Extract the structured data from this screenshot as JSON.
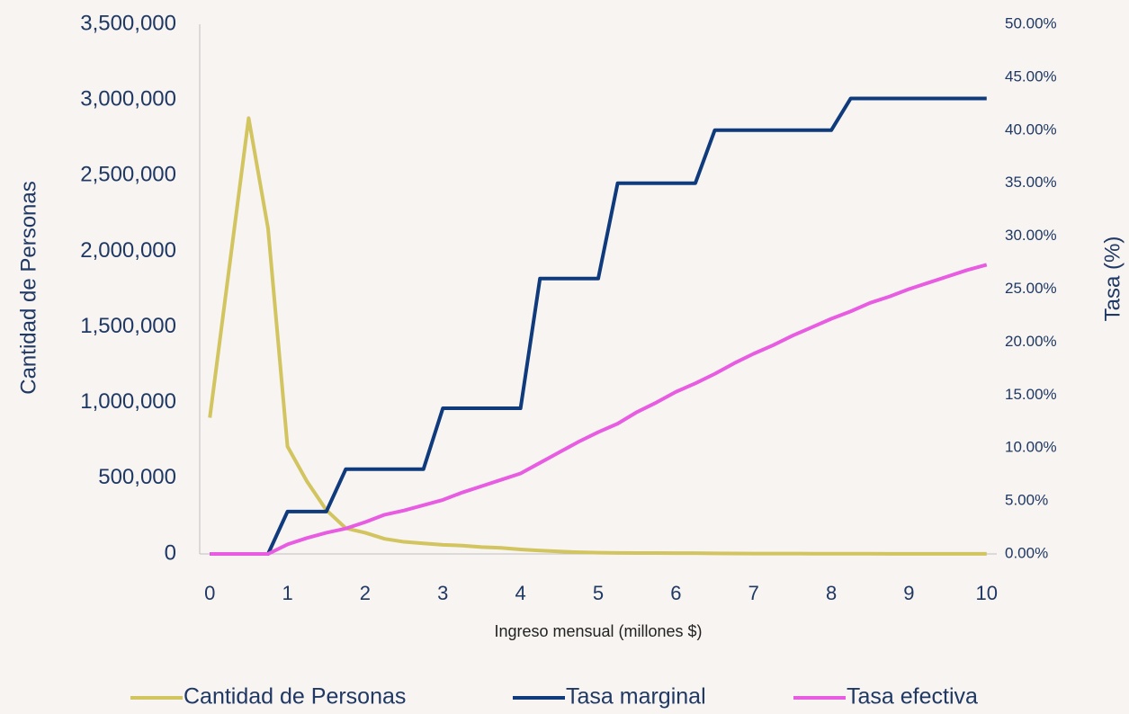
{
  "chart_data": {
    "type": "line",
    "xlabel": "Ingreso mensual (millones $)",
    "ylabel": "Cantidad de Personas",
    "y2label": "Tasa (%)",
    "x": [
      0,
      0.25,
      0.5,
      0.75,
      1,
      1.25,
      1.5,
      1.75,
      2,
      2.25,
      2.5,
      2.75,
      3,
      3.25,
      3.5,
      3.75,
      4,
      4.25,
      4.5,
      4.75,
      5,
      5.25,
      5.5,
      5.75,
      6,
      6.25,
      6.5,
      6.75,
      7,
      7.25,
      7.5,
      7.75,
      8,
      8.25,
      8.5,
      8.75,
      9,
      9.25,
      9.5,
      9.75,
      10
    ],
    "xlim": [
      -0.13,
      10.13
    ],
    "xticks": [
      0,
      1,
      2,
      3,
      4,
      5,
      6,
      7,
      8,
      9,
      10
    ],
    "ylim": [
      0,
      3500000
    ],
    "yticks": [
      0,
      {
        "value": 500000,
        "label": "500,000"
      },
      {
        "value": 1000000,
        "label": "1,000,000"
      },
      {
        "value": 1500000,
        "label": "1,500,000"
      },
      {
        "value": 2000000,
        "label": "2,000,000"
      },
      {
        "value": 2500000,
        "label": "2,500,000"
      },
      {
        "value": 3000000,
        "label": "3,000,000"
      },
      {
        "value": 3500000,
        "label": "3,500,000"
      }
    ],
    "y2lim": [
      0,
      50
    ],
    "y2ticks": [
      {
        "value": 0,
        "label": "0.00%"
      },
      {
        "value": 5,
        "label": "5.00%"
      },
      {
        "value": 10,
        "label": "10.00%"
      },
      {
        "value": 15,
        "label": "15.00%"
      },
      {
        "value": 20,
        "label": "20.00%"
      },
      {
        "value": 25,
        "label": "25.00%"
      },
      {
        "value": 30,
        "label": "30.00%"
      },
      {
        "value": 35,
        "label": "35.00%"
      },
      {
        "value": 40,
        "label": "40.00%"
      },
      {
        "value": 45,
        "label": "45.00%"
      },
      {
        "value": 50,
        "label": "50.00%"
      }
    ],
    "grid": false,
    "legend": "bottom",
    "series": [
      {
        "name": "Cantidad de Personas",
        "color": "#d2c45f",
        "axis": "y",
        "values": [
          900000,
          1890000,
          2880000,
          2150000,
          710000,
          480000,
          290000,
          170000,
          140000,
          100000,
          80000,
          70000,
          60000,
          55000,
          45000,
          40000,
          30000,
          22000,
          16000,
          11000,
          8000,
          7000,
          6000,
          6000,
          5000,
          5000,
          4000,
          3000,
          2500,
          2000,
          2000,
          1800,
          1500,
          1300,
          1200,
          1000,
          900,
          800,
          700,
          600,
          500
        ]
      },
      {
        "name": "Tasa marginal",
        "color": "#0f3a7c",
        "axis": "y2",
        "values": [
          0,
          0,
          0,
          0,
          4,
          4,
          4,
          8,
          8,
          8,
          8,
          8,
          13.75,
          13.75,
          13.75,
          13.75,
          13.75,
          26,
          26,
          26,
          26,
          35,
          35,
          35,
          35,
          35,
          40,
          40,
          40,
          40,
          40,
          40,
          40,
          43,
          43,
          43,
          43,
          43,
          43,
          43,
          43
        ]
      },
      {
        "name": "Tasa efectiva",
        "color": "#e85ce2",
        "axis": "y2",
        "values": [
          0,
          0,
          0,
          0,
          0.9,
          1.5,
          2.0,
          2.4,
          3.0,
          3.7,
          4.1,
          4.6,
          5.1,
          5.8,
          6.4,
          7.0,
          7.6,
          8.6,
          9.6,
          10.6,
          11.5,
          12.3,
          13.4,
          14.3,
          15.3,
          16.1,
          17.0,
          18.0,
          18.9,
          19.7,
          20.6,
          21.4,
          22.2,
          22.9,
          23.7,
          24.3,
          25.0,
          25.6,
          26.2,
          26.8,
          27.3
        ]
      }
    ]
  }
}
